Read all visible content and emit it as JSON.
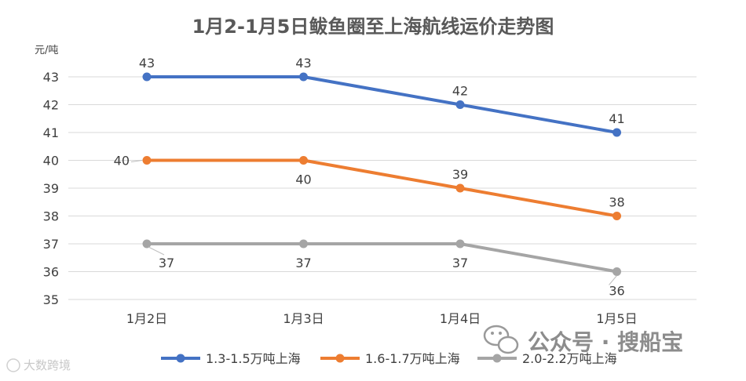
{
  "chart_data": {
    "type": "line",
    "title": "1月2-1月5日鲅鱼圈至上海航线运价走势图",
    "ylabel": "元/吨",
    "xlabel": "",
    "categories": [
      "1月2日",
      "1月3日",
      "1月4日",
      "1月5日"
    ],
    "ylim": [
      35,
      43
    ],
    "yticks": [
      35,
      36,
      37,
      38,
      39,
      40,
      41,
      42,
      43
    ],
    "grid": true,
    "legend": "bottom",
    "series": [
      {
        "name": "1.3-1.5万吨上海",
        "values": [
          43,
          43,
          42,
          41
        ],
        "color": "#4472C4"
      },
      {
        "name": "1.6-1.7万吨上海",
        "values": [
          40,
          40,
          39,
          38
        ],
        "color": "#ED7D31"
      },
      {
        "name": "2.0-2.2万吨上海",
        "values": [
          37,
          37,
          37,
          36
        ],
        "color": "#A5A5A5"
      }
    ]
  },
  "watermark": {
    "wechat": "公众号 · 搜船宝",
    "corner": "大数跨境",
    "icon": "wechat-icon"
  }
}
